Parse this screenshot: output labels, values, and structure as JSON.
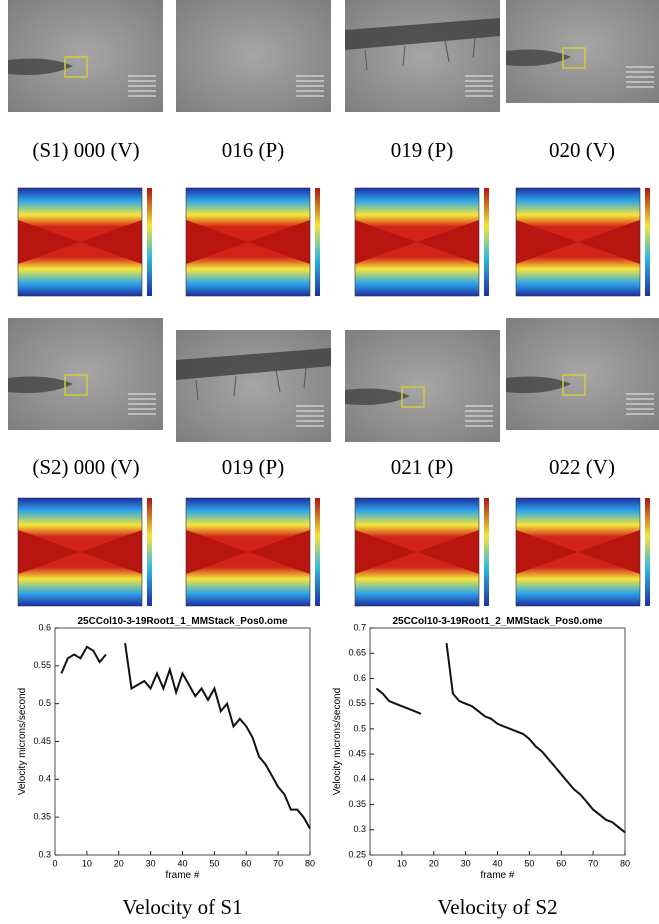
{
  "image_rows": [
    {
      "captions": [
        "(S1) 000 (V)",
        "016 (P)",
        "019 (P)",
        "020 (V)"
      ]
    },
    {
      "captions": [
        "(S2) 000 (V)",
        "019 (P)",
        "021 (P)",
        "022 (V)"
      ]
    }
  ],
  "chart_data": [
    {
      "type": "line",
      "title": "25CCol10-3-19Root1_1_MMStack_Pos0.ome",
      "xlabel": "frame #",
      "ylabel": "Velocity microns/second",
      "caption": "Velocity of S1",
      "color": "#111111",
      "x": [
        2,
        4,
        6,
        8,
        10,
        12,
        14,
        16,
        18,
        20,
        22,
        24,
        26,
        28,
        30,
        32,
        34,
        36,
        38,
        40,
        42,
        44,
        46,
        48,
        50,
        52,
        54,
        56,
        58,
        60,
        62,
        64,
        66,
        68,
        70,
        72,
        74,
        76,
        78,
        80
      ],
      "values": [
        0.54,
        0.56,
        0.565,
        0.56,
        0.575,
        0.57,
        0.555,
        0.565,
        null,
        null,
        0.58,
        0.52,
        0.525,
        0.53,
        0.52,
        0.54,
        0.52,
        0.545,
        0.515,
        0.54,
        0.525,
        0.51,
        0.52,
        0.505,
        0.52,
        0.49,
        0.5,
        0.47,
        0.48,
        0.47,
        0.455,
        0.43,
        0.42,
        0.405,
        0.39,
        0.38,
        0.36,
        0.36,
        0.35,
        0.335
      ],
      "xlim": [
        0,
        80
      ],
      "xticks": [
        0,
        10,
        20,
        30,
        40,
        50,
        60,
        70,
        80
      ],
      "ylim": [
        0.3,
        0.6
      ],
      "yticks": [
        0.3,
        0.35,
        0.4,
        0.45,
        0.5,
        0.55,
        0.6
      ]
    },
    {
      "type": "line",
      "title": "25CCol10-3-19Root1_2_MMStack_Pos0.ome",
      "xlabel": "frame #",
      "ylabel": "Velocity microns/second",
      "caption": "Velocity of S2",
      "color": "#111111",
      "x": [
        2,
        4,
        6,
        8,
        10,
        12,
        14,
        16,
        18,
        20,
        22,
        24,
        26,
        28,
        30,
        32,
        34,
        36,
        38,
        40,
        42,
        44,
        46,
        48,
        50,
        52,
        54,
        56,
        58,
        60,
        62,
        64,
        66,
        68,
        70,
        72,
        74,
        76,
        78,
        80
      ],
      "values": [
        0.58,
        0.57,
        0.555,
        0.55,
        0.545,
        0.54,
        0.535,
        0.53,
        null,
        null,
        null,
        0.67,
        0.57,
        0.555,
        0.55,
        0.545,
        0.535,
        0.525,
        0.52,
        0.51,
        0.505,
        0.5,
        0.495,
        0.49,
        0.48,
        0.465,
        0.455,
        0.44,
        0.425,
        0.41,
        0.395,
        0.38,
        0.37,
        0.355,
        0.34,
        0.33,
        0.32,
        0.315,
        0.305,
        0.295
      ],
      "xlim": [
        0,
        80
      ],
      "xticks": [
        0,
        10,
        20,
        30,
        40,
        50,
        60,
        70,
        80
      ],
      "ylim": [
        0.25,
        0.7
      ],
      "yticks": [
        0.25,
        0.3,
        0.35,
        0.4,
        0.45,
        0.5,
        0.55,
        0.6,
        0.65,
        0.7
      ]
    }
  ]
}
